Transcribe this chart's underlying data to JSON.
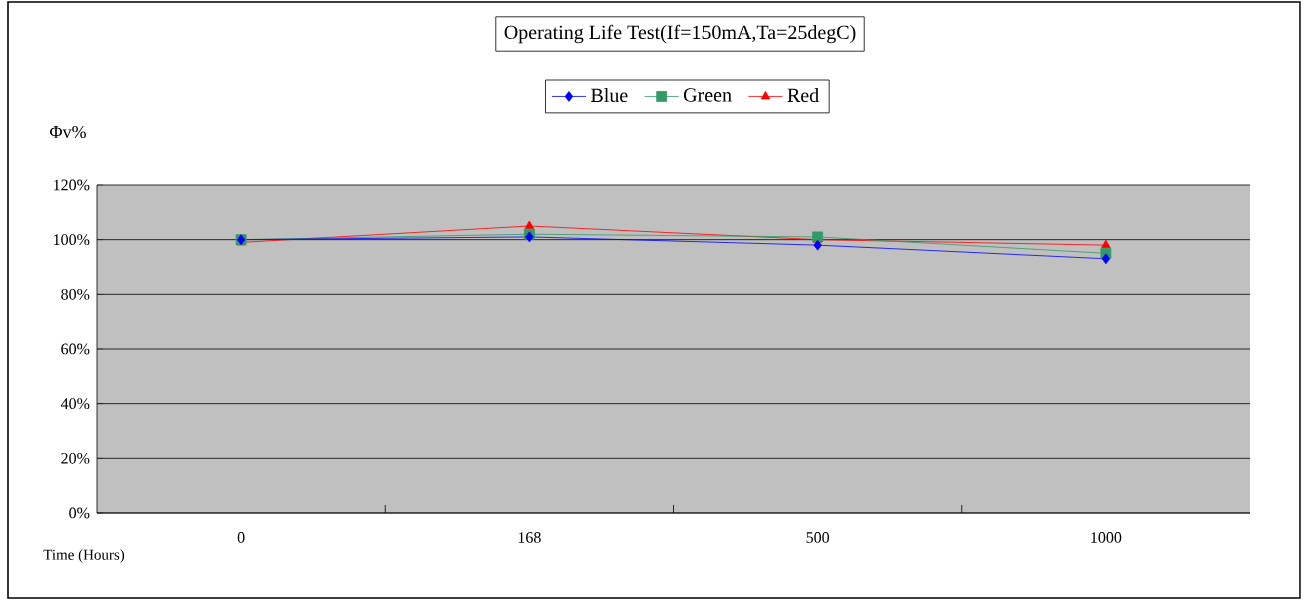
{
  "chart_data": {
    "type": "line",
    "title": "Operating Life Test(If=150mA,Ta=25degC)",
    "xlabel": "Time (Hours)",
    "ylabel": "Φv%",
    "categories": [
      "0",
      "168",
      "500",
      "1000"
    ],
    "series": [
      {
        "name": "Blue",
        "color": "#0000ff",
        "marker": "diamond",
        "values": [
          100,
          101,
          98,
          93
        ]
      },
      {
        "name": "Green",
        "color": "#339966",
        "marker": "square",
        "values": [
          100,
          102,
          101,
          95
        ]
      },
      {
        "name": "Red",
        "color": "#ff0000",
        "marker": "triangle",
        "values": [
          99,
          105,
          100,
          98
        ]
      }
    ],
    "ylim": [
      0,
      120
    ],
    "yticks": [
      {
        "value": 0,
        "label": "0%"
      },
      {
        "value": 20,
        "label": "20%"
      },
      {
        "value": 40,
        "label": "40%"
      },
      {
        "value": 60,
        "label": "60%"
      },
      {
        "value": 80,
        "label": "80%"
      },
      {
        "value": 100,
        "label": "100%"
      },
      {
        "value": 120,
        "label": "120%"
      }
    ],
    "grid": "y",
    "legend": "top",
    "line_style": "solid"
  }
}
